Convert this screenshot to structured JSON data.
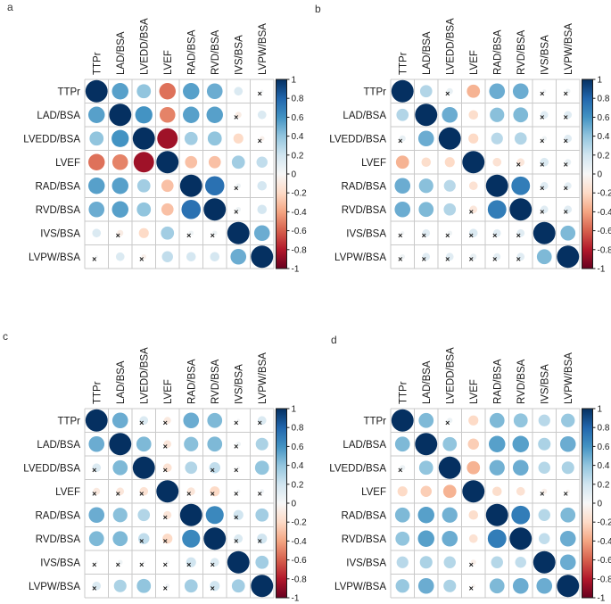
{
  "chart_data": {
    "type": "heatmap",
    "subtype": "correlation-circle-matrix-grid",
    "description": "Four correlation matrices (circle size and color encode correlation coefficient r; x marks non-significant correlations)",
    "variables": [
      "TTPr",
      "LAD/BSA",
      "LVEDD/BSA",
      "LVEF",
      "RAD/BSA",
      "RVD/BSA",
      "IVS/BSA",
      "LVPW/BSA"
    ],
    "legend_position": "right",
    "grid": true,
    "colorbar": {
      "max": 1,
      "min": -1,
      "ticks": [
        "1",
        "0.8",
        "0.6",
        "0.4",
        "0.2",
        "0",
        "-0.2",
        "-0.4",
        "-0.6",
        "-0.8",
        "-1"
      ],
      "palette": [
        "#053061",
        "#2166AC",
        "#4393C3",
        "#92C5DE",
        "#D1E5F0",
        "#F7F7F7",
        "#FDDBC7",
        "#F4A582",
        "#D6604D",
        "#B2182B",
        "#67001F"
      ]
    },
    "insig_marker": "×",
    "panels": [
      {
        "label": "a",
        "matrix": [
          [
            1,
            0.55,
            0.4,
            -0.55,
            0.55,
            0.5,
            0.15,
            0.02
          ],
          [
            0.55,
            1,
            0.6,
            -0.5,
            0.55,
            0.55,
            -0.08,
            0.15
          ],
          [
            0.4,
            0.6,
            1,
            -0.85,
            0.35,
            0.4,
            -0.2,
            -0.05
          ],
          [
            -0.55,
            -0.5,
            -0.85,
            1,
            -0.3,
            -0.3,
            0.35,
            0.25
          ],
          [
            0.55,
            0.55,
            0.35,
            -0.3,
            1,
            0.75,
            0.05,
            0.18
          ],
          [
            0.5,
            0.55,
            0.4,
            -0.3,
            0.75,
            1,
            0.05,
            0.18
          ],
          [
            0.15,
            -0.08,
            -0.2,
            0.35,
            0.05,
            0.05,
            1,
            0.5
          ],
          [
            0.02,
            0.15,
            -0.05,
            0.25,
            0.18,
            0.18,
            0.5,
            1
          ]
        ],
        "insig_pairs": [
          [
            0,
            7
          ],
          [
            1,
            6
          ],
          [
            2,
            7
          ],
          [
            4,
            6
          ],
          [
            5,
            6
          ]
        ]
      },
      {
        "label": "b",
        "matrix": [
          [
            1,
            0.3,
            0.08,
            -0.35,
            0.5,
            0.5,
            0.03,
            0.05
          ],
          [
            0.3,
            1,
            0.5,
            -0.18,
            0.42,
            0.45,
            0.12,
            0.12
          ],
          [
            0.08,
            0.5,
            1,
            -0.2,
            0.28,
            0.3,
            0.05,
            0.12
          ],
          [
            -0.35,
            -0.18,
            -0.2,
            1,
            -0.15,
            -0.12,
            0.15,
            0.08
          ],
          [
            0.5,
            0.42,
            0.28,
            -0.15,
            1,
            0.7,
            0.12,
            0.1
          ],
          [
            0.5,
            0.45,
            0.3,
            -0.12,
            0.7,
            1,
            0.12,
            0.12
          ],
          [
            0.03,
            0.12,
            0.05,
            0.15,
            0.12,
            0.12,
            1,
            0.45
          ],
          [
            0.05,
            0.12,
            0.12,
            0.08,
            0.1,
            0.12,
            0.45,
            1
          ]
        ],
        "insig_pairs": [
          [
            0,
            2
          ],
          [
            0,
            6
          ],
          [
            0,
            7
          ],
          [
            1,
            6
          ],
          [
            1,
            7
          ],
          [
            2,
            6
          ],
          [
            2,
            7
          ],
          [
            3,
            5
          ],
          [
            3,
            6
          ],
          [
            3,
            7
          ],
          [
            4,
            6
          ],
          [
            4,
            7
          ],
          [
            5,
            6
          ],
          [
            5,
            7
          ]
        ]
      },
      {
        "label": "c",
        "matrix": [
          [
            1,
            0.5,
            0.15,
            -0.1,
            0.5,
            0.45,
            0.02,
            0.15
          ],
          [
            0.5,
            1,
            0.45,
            -0.12,
            0.42,
            0.45,
            0.05,
            0.32
          ],
          [
            0.15,
            0.45,
            1,
            -0.15,
            0.3,
            0.25,
            0.02,
            0.4
          ],
          [
            -0.1,
            -0.12,
            -0.15,
            1,
            -0.13,
            -0.2,
            0.03,
            0.04
          ],
          [
            0.5,
            0.42,
            0.3,
            -0.13,
            1,
            0.65,
            0.2,
            0.35
          ],
          [
            0.45,
            0.45,
            0.25,
            -0.2,
            0.65,
            1,
            0.15,
            0.2
          ],
          [
            0.02,
            0.05,
            0.02,
            0.03,
            0.2,
            0.15,
            1,
            0.35
          ],
          [
            0.15,
            0.32,
            0.4,
            0.04,
            0.35,
            0.2,
            0.35,
            1
          ]
        ],
        "insig_pairs": [
          [
            0,
            2
          ],
          [
            0,
            3
          ],
          [
            0,
            6
          ],
          [
            0,
            7
          ],
          [
            1,
            3
          ],
          [
            1,
            6
          ],
          [
            2,
            3
          ],
          [
            2,
            5
          ],
          [
            2,
            6
          ],
          [
            3,
            4
          ],
          [
            3,
            5
          ],
          [
            3,
            6
          ],
          [
            3,
            7
          ],
          [
            4,
            6
          ],
          [
            5,
            6
          ],
          [
            5,
            7
          ]
        ]
      },
      {
        "label": "d",
        "matrix": [
          [
            1,
            0.45,
            0.06,
            -0.2,
            0.45,
            0.4,
            0.28,
            0.38
          ],
          [
            0.45,
            1,
            0.4,
            -0.25,
            0.55,
            0.55,
            0.32,
            0.5
          ],
          [
            0.06,
            0.4,
            1,
            -0.35,
            0.48,
            0.5,
            0.29,
            0.32
          ],
          [
            -0.2,
            -0.25,
            -0.35,
            1,
            -0.18,
            -0.15,
            -0.06,
            -0.03
          ],
          [
            0.45,
            0.55,
            0.48,
            -0.18,
            1,
            0.7,
            0.29,
            0.45
          ],
          [
            0.4,
            0.55,
            0.5,
            -0.15,
            0.7,
            1,
            0.25,
            0.5
          ],
          [
            0.28,
            0.32,
            0.29,
            -0.06,
            0.29,
            0.25,
            1,
            0.5
          ],
          [
            0.38,
            0.5,
            0.32,
            -0.03,
            0.45,
            0.5,
            0.5,
            1
          ]
        ],
        "insig_pairs": [
          [
            0,
            2
          ],
          [
            3,
            6
          ],
          [
            3,
            7
          ]
        ]
      }
    ]
  }
}
